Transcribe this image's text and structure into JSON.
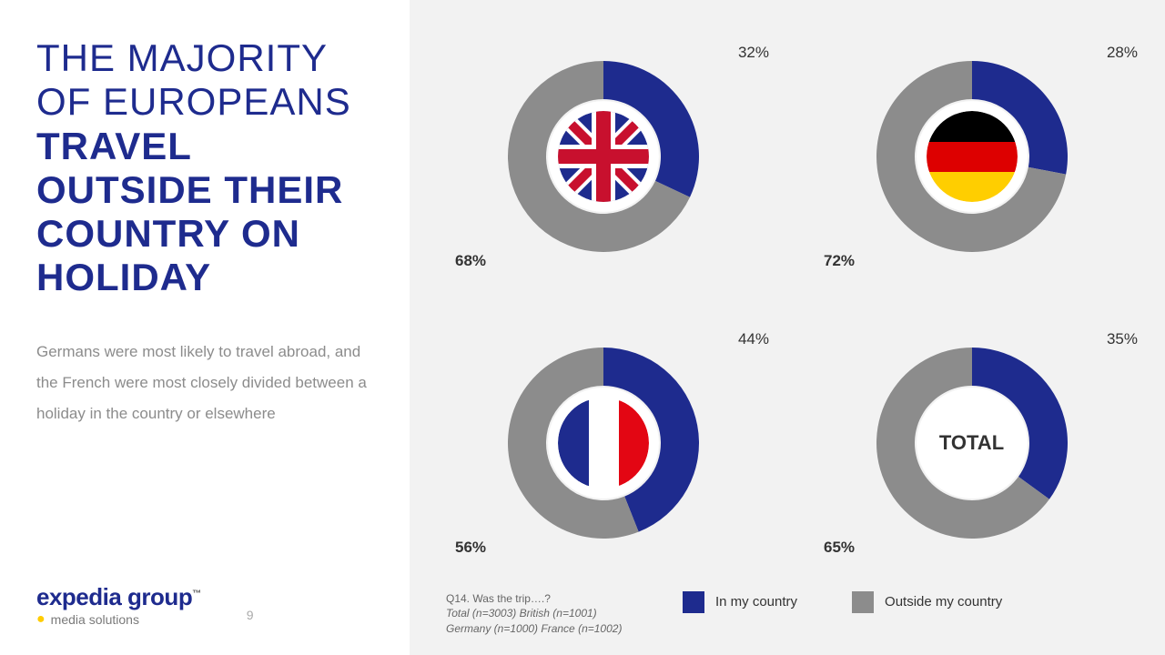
{
  "title": {
    "light": "THE MAJORITY OF EUROPEANS",
    "bold": "TRAVEL OUTSIDE THEIR COUNTRY ON HOLIDAY"
  },
  "body": "Germans were most likely to travel abroad, and the French were most closely divided between a holiday in the country or elsewhere",
  "brand": {
    "line1": "expedia group",
    "line2": "media solutions"
  },
  "page_num": "9",
  "colors": {
    "in_country": "#1e2b8e",
    "outside": "#8c8c8c",
    "title": "#1e2b8e",
    "body_text": "#8c8c8c",
    "right_bg": "#f2f2f2",
    "pct_text": "#333333"
  },
  "donut": {
    "outer_r": 100,
    "inner_r": 60,
    "center_bg": "#ffffff"
  },
  "charts": [
    {
      "id": "uk",
      "flag": "uk",
      "in": 32,
      "out": 68,
      "in_label": "32%",
      "out_label": "68%"
    },
    {
      "id": "de",
      "flag": "de",
      "in": 28,
      "out": 72,
      "in_label": "28%",
      "out_label": "72%"
    },
    {
      "id": "fr",
      "flag": "fr",
      "in": 44,
      "out": 56,
      "in_label": "44%",
      "out_label": "56%"
    },
    {
      "id": "total",
      "flag": "total",
      "in": 35,
      "out": 65,
      "in_label": "35%",
      "out_label": "65%",
      "center_text": "TOTAL"
    }
  ],
  "legend": {
    "in_label": "In my country",
    "out_label": "Outside my country"
  },
  "source": {
    "line1": "Q14. Was the trip….?",
    "line2": "Total (n=3003) British (n=1001)",
    "line3": "Germany (n=1000) France (n=1002)"
  }
}
